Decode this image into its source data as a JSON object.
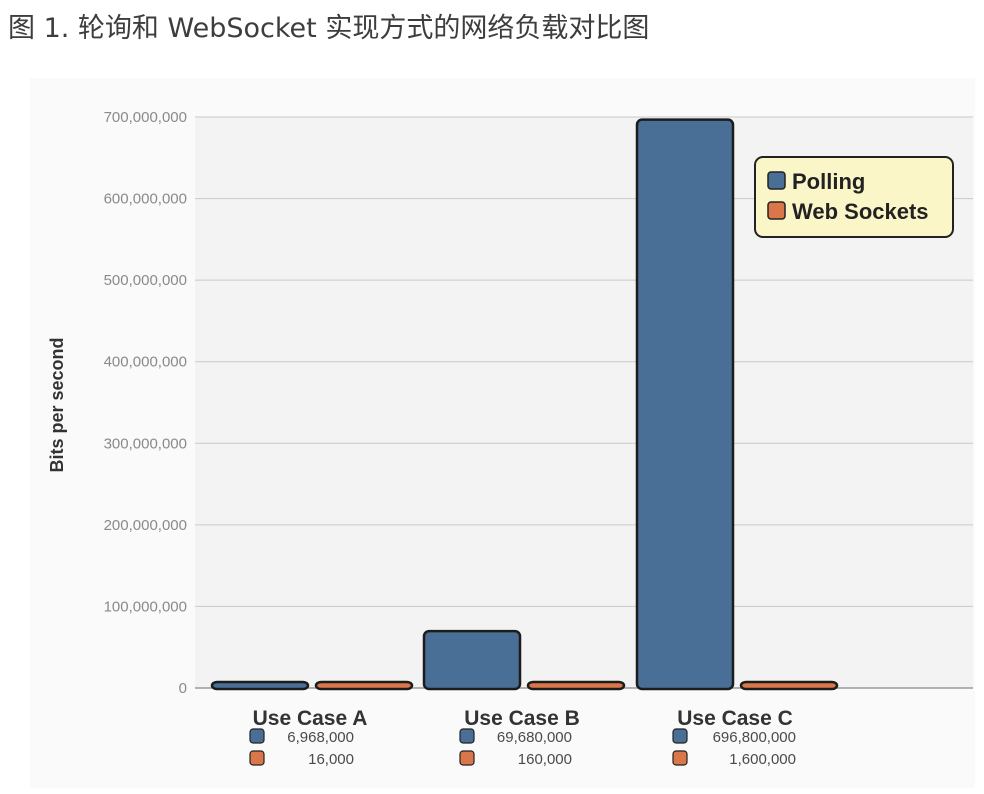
{
  "caption": "图 1. 轮询和 WebSocket 实现方式的网络负载对比图",
  "colors": {
    "polling": "#4a6f96",
    "websockets": "#d9774a",
    "legend_bg": "#fbf6c8",
    "grid": "#c9c9c9",
    "plot_bg": "#f3f3f3"
  },
  "chart_data": {
    "type": "bar",
    "title": "",
    "xlabel": "",
    "ylabel": "Bits per second",
    "ylim": [
      0,
      700000000
    ],
    "yticks": [
      0,
      100000000,
      200000000,
      300000000,
      400000000,
      500000000,
      600000000,
      700000000
    ],
    "ytick_labels": [
      "0",
      "100,000,000",
      "200,000,000",
      "300,000,000",
      "400,000,000",
      "500,000,000",
      "600,000,000",
      "700,000,000"
    ],
    "categories": [
      "Use Case A",
      "Use Case B",
      "Use Case C"
    ],
    "series": [
      {
        "name": "Polling",
        "values": [
          6968000,
          69680000,
          696800000
        ],
        "labels": [
          "6,968,000",
          "69,680,000",
          "696,800,000"
        ]
      },
      {
        "name": "Web Sockets",
        "values": [
          16000,
          160000,
          1600000
        ],
        "labels": [
          "16,000",
          "160,000",
          "1,600,000"
        ]
      }
    ],
    "grid": true,
    "legend_position": "top-right"
  }
}
